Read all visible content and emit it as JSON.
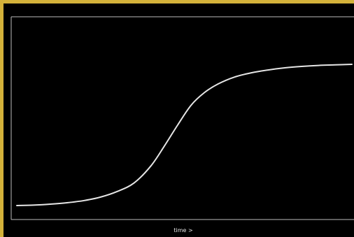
{
  "colors": {
    "border": "#d4b23a",
    "background": "#000000",
    "axis": "#bdbdbd",
    "curve": "#e6e6e6",
    "text": "#e6e6e6"
  },
  "chart_data": {
    "type": "line",
    "title": "",
    "xlabel": "time >",
    "ylabel": "",
    "grid": false,
    "legend": "none",
    "xlim": [
      0,
      1
    ],
    "ylim": [
      0,
      1
    ],
    "series": [
      {
        "values_x": [
          0,
          0.05,
          0.1,
          0.15,
          0.2,
          0.25,
          0.3,
          0.35,
          0.4,
          0.44,
          0.48,
          0.52,
          0.56,
          0.6,
          0.65,
          0.7,
          0.75,
          0.8,
          0.85,
          0.9,
          0.95,
          1.0
        ],
        "values_y": [
          0.0,
          0.003,
          0.01,
          0.02,
          0.035,
          0.06,
          0.1,
          0.16,
          0.28,
          0.42,
          0.57,
          0.71,
          0.8,
          0.86,
          0.91,
          0.94,
          0.96,
          0.975,
          0.985,
          0.992,
          0.996,
          1.0
        ]
      }
    ]
  }
}
